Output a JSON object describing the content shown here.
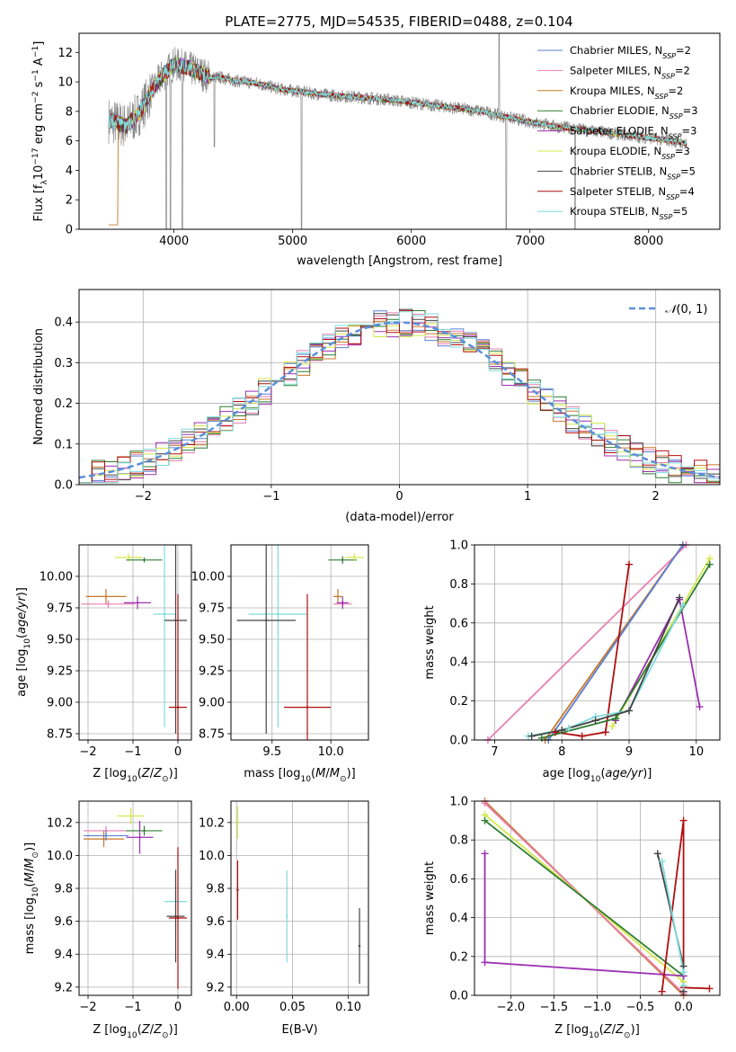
{
  "figure_title": "PLATE=2775, MJD=54535, FIBERID=0488, z=0.104",
  "series_colors": {
    "chabrier_miles": "#5b7fd6",
    "salpeter_miles": "#e87fb0",
    "kroupa_miles": "#c8782a",
    "chabrier_elodie": "#2e7d32",
    "salpeter_elodie": "#9b30b0",
    "kroupa_elodie": "#d4e84a",
    "chabrier_stelib": "#444444",
    "salpeter_stelib": "#b00f0f",
    "kroupa_stelib": "#7fdcdc"
  },
  "chart_data": [
    {
      "id": "spectrum",
      "type": "line",
      "xlabel": "wavelength [Angstrom, rest frame]",
      "ylabel": "Flux [fλ 10⁻¹⁷ erg cm⁻² s⁻¹ A⁻¹]",
      "xlim": [
        3200,
        8600
      ],
      "ylim": [
        0,
        13.3
      ],
      "xticks": [
        4000,
        5000,
        6000,
        7000,
        8000
      ],
      "yticks": [
        0,
        2,
        4,
        6,
        8,
        10,
        12
      ],
      "grid": false,
      "legend_position": "top-right",
      "legend": [
        "Chabrier MILES, N_SSP=2",
        "Salpeter MILES, N_SSP=2",
        "Kroupa MILES, N_SSP=2",
        "Chabrier ELODIE, N_SSP=3",
        "Salpeter ELODIE, N_SSP=3",
        "Kroupa ELODIE, N_SSP=3",
        "Chabrier STELIB, N_SSP=5",
        "Salpeter STELIB, N_SSP=4",
        "Kroupa STELIB, N_SSP=5"
      ],
      "data_color": "#8a8a8a",
      "continuum": {
        "x": [
          3450,
          3600,
          3700,
          3800,
          3900,
          4000,
          4100,
          4200,
          4300,
          4400,
          4500,
          4700,
          4900,
          5100,
          5300,
          5500,
          5800,
          6000,
          6200,
          6400,
          6600,
          6800,
          7000,
          7200,
          7400,
          7600,
          7800,
          8000,
          8200,
          8320
        ],
        "y": [
          7.4,
          7.0,
          7.8,
          9.2,
          10.4,
          11.2,
          11.0,
          10.7,
          10.3,
          10.3,
          10.1,
          9.9,
          9.5,
          9.3,
          9.1,
          9.0,
          8.8,
          8.6,
          8.4,
          8.2,
          8.0,
          7.6,
          7.3,
          7.0,
          6.8,
          6.6,
          6.4,
          6.2,
          6.0,
          5.8
        ]
      }
    },
    {
      "id": "residuals",
      "type": "line",
      "xlabel": "(data-model)/error",
      "ylabel": "Normed distribution",
      "xlim": [
        -2.5,
        2.5
      ],
      "ylim": [
        0,
        0.48
      ],
      "xticks": [
        -2,
        -1,
        0,
        1,
        2
      ],
      "yticks": [
        0.0,
        0.1,
        0.2,
        0.3,
        0.4
      ],
      "grid": true,
      "legend_position": "top-right",
      "legend": [
        "N(0,1)"
      ],
      "gaussian": {
        "mean": 0,
        "sigma": 1
      },
      "bin_width": 0.1
    },
    {
      "id": "age_vs_Z",
      "type": "scatter",
      "xlabel": "Z [log10(Z/Z⊙)]",
      "ylabel": "age  [log10(age/yr)]",
      "xlim": [
        -2.2,
        0.3
      ],
      "ylim": [
        8.7,
        10.25
      ],
      "xticks": [
        -2,
        -1,
        0
      ],
      "yticks": [
        8.75,
        9.0,
        9.25,
        9.5,
        9.75,
        10.0
      ],
      "grid": true,
      "points": [
        {
          "series": "kroupa_miles",
          "x": -1.6,
          "y": 9.84,
          "xerr": 0.45,
          "yerr": 0.06
        },
        {
          "series": "salpeter_miles",
          "x": -1.55,
          "y": 9.78,
          "xerr": 0.6,
          "yerr": 0.03
        },
        {
          "series": "kroupa_elodie",
          "x": -1.1,
          "y": 10.15,
          "xerr": 0.3,
          "yerr": 0.03
        },
        {
          "series": "chabrier_elodie",
          "x": -0.75,
          "y": 10.13,
          "xerr": 0.4,
          "yerr": 0.02
        },
        {
          "series": "salpeter_elodie",
          "x": -0.9,
          "y": 9.79,
          "xerr": 0.3,
          "yerr": 0.05
        },
        {
          "series": "kroupa_stelib",
          "x": -0.3,
          "y": 9.7,
          "xerr": 0.25,
          "yerr": 0.9
        },
        {
          "series": "chabrier_stelib",
          "x": -0.05,
          "y": 9.65,
          "xerr": 0.25,
          "yerr": 0.9
        },
        {
          "series": "salpeter_stelib",
          "x": 0.0,
          "y": 8.96,
          "xerr": 0.2,
          "yerr": 0.9
        }
      ]
    },
    {
      "id": "age_vs_mass",
      "type": "scatter",
      "xlabel": "mass [log10(M/M⊙)]",
      "ylabel": "",
      "xlim": [
        9.15,
        10.32
      ],
      "ylim": [
        8.7,
        10.25
      ],
      "xticks": [
        9.5,
        10.0
      ],
      "yticks": [
        8.75,
        9.0,
        9.25,
        9.5,
        9.75,
        10.0
      ],
      "grid": true,
      "points": [
        {
          "series": "chabrier_elodie",
          "x": 10.1,
          "y": 10.13,
          "xerr": 0.12,
          "yerr": 0.03
        },
        {
          "series": "kroupa_elodie",
          "x": 10.2,
          "y": 10.15,
          "xerr": 0.08,
          "yerr": 0.03
        },
        {
          "series": "kroupa_miles",
          "x": 10.06,
          "y": 9.84,
          "xerr": 0.04,
          "yerr": 0.06
        },
        {
          "series": "salpeter_miles",
          "x": 10.1,
          "y": 9.78,
          "xerr": 0.08,
          "yerr": 0.03
        },
        {
          "series": "salpeter_elodie",
          "x": 10.1,
          "y": 9.79,
          "xerr": 0.05,
          "yerr": 0.05
        },
        {
          "series": "kroupa_stelib",
          "x": 9.55,
          "y": 9.7,
          "xerr": 0.25,
          "yerr": 0.9
        },
        {
          "series": "chabrier_stelib",
          "x": 9.45,
          "y": 9.65,
          "xerr": 0.25,
          "yerr": 0.9
        },
        {
          "series": "salpeter_stelib",
          "x": 9.8,
          "y": 8.96,
          "xerr": 0.2,
          "yerr": 0.9
        }
      ]
    },
    {
      "id": "weight_vs_age",
      "type": "line",
      "xlabel": "age  [log10(age/yr)]",
      "ylabel": "mass weight",
      "xlim": [
        6.7,
        10.35
      ],
      "ylim": [
        0,
        1.0
      ],
      "xticks": [
        7,
        8,
        9,
        10
      ],
      "yticks": [
        0.0,
        0.2,
        0.4,
        0.6,
        0.8,
        1.0
      ],
      "grid": true,
      "series": [
        {
          "key": "salpeter_miles",
          "x": [
            6.9,
            9.85
          ],
          "y": [
            0.0,
            1.0
          ]
        },
        {
          "key": "kroupa_miles",
          "x": [
            7.75,
            9.8
          ],
          "y": [
            0.0,
            1.0
          ]
        },
        {
          "key": "chabrier_miles",
          "x": [
            7.8,
            9.8
          ],
          "y": [
            0.0,
            1.0
          ]
        },
        {
          "key": "salpeter_stelib",
          "x": [
            7.9,
            8.3,
            8.65,
            9.0
          ],
          "y": [
            0.04,
            0.02,
            0.04,
            0.9
          ]
        },
        {
          "key": "salpeter_elodie",
          "x": [
            8.8,
            9.75,
            10.05
          ],
          "y": [
            0.1,
            0.72,
            0.17
          ]
        },
        {
          "key": "kroupa_elodie",
          "x": [
            8.75,
            10.2
          ],
          "y": [
            0.07,
            0.93
          ]
        },
        {
          "key": "chabrier_elodie",
          "x": [
            7.7,
            8.8,
            10.2
          ],
          "y": [
            0.01,
            0.11,
            0.9
          ]
        },
        {
          "key": "kroupa_stelib",
          "x": [
            7.5,
            8.1,
            8.5,
            9.0,
            9.8
          ],
          "y": [
            0.02,
            0.06,
            0.12,
            0.15,
            0.69
          ]
        },
        {
          "key": "chabrier_stelib",
          "x": [
            7.55,
            8.0,
            8.5,
            9.0,
            9.75
          ],
          "y": [
            0.02,
            0.05,
            0.1,
            0.15,
            0.73
          ]
        }
      ]
    },
    {
      "id": "mass_vs_Z",
      "type": "scatter",
      "xlabel": "Z [log10(Z/Z⊙)]",
      "ylabel": "mass [log10(M/M⊙)]",
      "xlim": [
        -2.2,
        0.3
      ],
      "ylim": [
        9.15,
        10.33
      ],
      "xticks": [
        -2,
        -1,
        0
      ],
      "yticks": [
        9.2,
        9.4,
        9.6,
        9.8,
        10.0,
        10.2
      ],
      "grid": true,
      "points": [
        {
          "series": "kroupa_miles",
          "x": -1.65,
          "y": 10.1,
          "xerr": 0.45,
          "yerr": 0.05
        },
        {
          "series": "salpeter_miles",
          "x": -1.6,
          "y": 10.15,
          "xerr": 0.5,
          "yerr": 0.03
        },
        {
          "series": "chabrier_miles",
          "x": -1.6,
          "y": 10.12,
          "xerr": 0.5,
          "yerr": 0.03
        },
        {
          "series": "kroupa_elodie",
          "x": -1.05,
          "y": 10.24,
          "xerr": 0.3,
          "yerr": 0.05
        },
        {
          "series": "chabrier_elodie",
          "x": -0.75,
          "y": 10.15,
          "xerr": 0.4,
          "yerr": 0.03
        },
        {
          "series": "salpeter_elodie",
          "x": -0.85,
          "y": 10.11,
          "xerr": 0.3,
          "yerr": 0.1
        },
        {
          "series": "kroupa_stelib",
          "x": -0.05,
          "y": 9.72,
          "xerr": 0.25,
          "yerr": 0.2
        },
        {
          "series": "chabrier_stelib",
          "x": -0.05,
          "y": 9.63,
          "xerr": 0.2,
          "yerr": 0.28
        },
        {
          "series": "salpeter_stelib",
          "x": 0.0,
          "y": 9.62,
          "xerr": 0.2,
          "yerr": 0.43
        }
      ]
    },
    {
      "id": "mass_vs_ebv",
      "type": "scatter",
      "xlabel": "E(B-V)",
      "ylabel": "",
      "xlim": [
        -0.005,
        0.118
      ],
      "ylim": [
        9.15,
        10.33
      ],
      "xticks": [
        0.0,
        0.05,
        0.1
      ],
      "yticks": [
        9.2,
        9.4,
        9.6,
        9.8,
        10.0,
        10.2
      ],
      "grid": true,
      "points": [
        {
          "series": "kroupa_elodie",
          "x": 0.001,
          "y": 10.2,
          "xerr": 0.0,
          "yerr": 0.1
        },
        {
          "series": "salpeter_stelib",
          "x": 0.001,
          "y": 9.79,
          "xerr": 0.0,
          "yerr": 0.18
        },
        {
          "series": "kroupa_stelib",
          "x": 0.045,
          "y": 9.63,
          "xerr": 0.0,
          "yerr": 0.28
        },
        {
          "series": "chabrier_stelib",
          "x": 0.11,
          "y": 9.45,
          "xerr": 0.0,
          "yerr": 0.23
        }
      ]
    },
    {
      "id": "weight_vs_Z",
      "type": "line",
      "xlabel": "Z [log10(Z/Z⊙)]",
      "ylabel": "mass weight",
      "xlim": [
        -2.42,
        0.42
      ],
      "ylim": [
        0,
        1.0
      ],
      "xticks": [
        -2.0,
        -1.5,
        -1.0,
        -0.5,
        0.0
      ],
      "yticks": [
        0.0,
        0.2,
        0.4,
        0.6,
        0.8,
        1.0
      ],
      "grid": true,
      "series": [
        {
          "key": "kroupa_miles",
          "x": [
            -2.3,
            0.0
          ],
          "y": [
            1.0,
            0.0
          ]
        },
        {
          "key": "salpeter_miles",
          "x": [
            -2.3,
            0.0
          ],
          "y": [
            0.99,
            0.01
          ]
        },
        {
          "key": "kroupa_elodie",
          "x": [
            -2.3,
            0.0
          ],
          "y": [
            0.93,
            0.07
          ]
        },
        {
          "key": "chabrier_elodie",
          "x": [
            -2.3,
            0.0
          ],
          "y": [
            0.9,
            0.1
          ]
        },
        {
          "key": "salpeter_elodie",
          "x": [
            -2.3,
            -2.3,
            0.0
          ],
          "y": [
            0.73,
            0.17,
            0.1
          ]
        },
        {
          "key": "salpeter_stelib",
          "x": [
            -0.25,
            0.0,
            0.0,
            0.3
          ],
          "y": [
            0.02,
            0.9,
            0.04,
            0.035
          ]
        },
        {
          "key": "chabrier_stelib",
          "x": [
            -0.3,
            0.0,
            0.0
          ],
          "y": [
            0.73,
            0.15,
            0.02
          ]
        },
        {
          "key": "kroupa_stelib",
          "x": [
            -0.25,
            0.0,
            0.0
          ],
          "y": [
            0.69,
            0.12,
            0.05
          ]
        }
      ]
    }
  ]
}
